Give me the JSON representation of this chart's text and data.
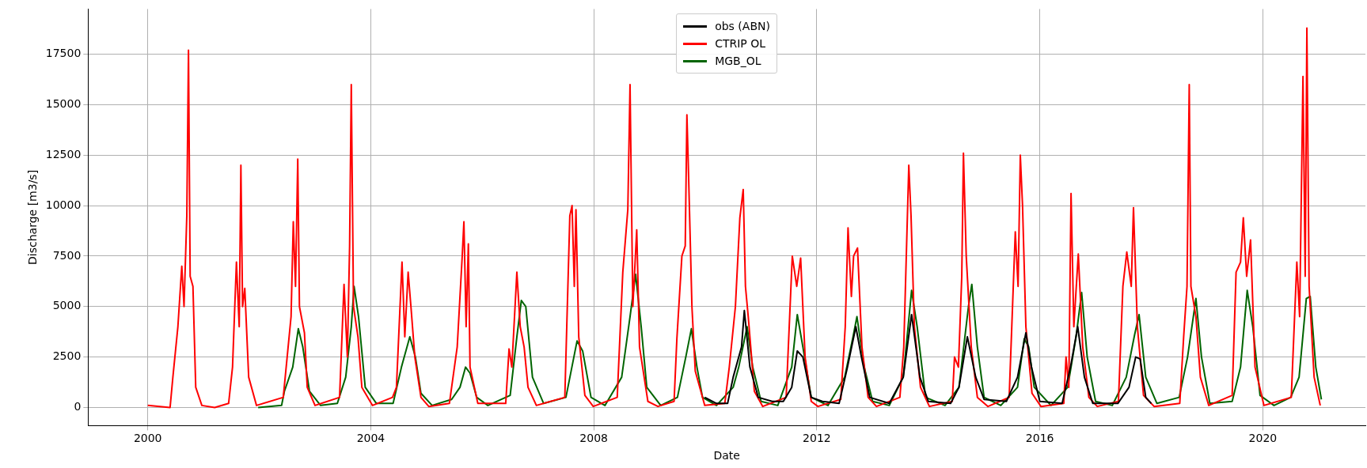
{
  "chart_data": {
    "type": "line",
    "xlabel": "Date",
    "ylabel": "Discharge [m3/s]",
    "xlim": [
      1998.93,
      2021.84
    ],
    "xticks": [
      2000,
      2004,
      2008,
      2012,
      2016,
      2020
    ],
    "ylim": [
      -900,
      19740
    ],
    "yticks": [
      0,
      2500,
      5000,
      7500,
      10000,
      12500,
      15000,
      17500
    ],
    "grid": true,
    "legend": "top",
    "marker": "none",
    "line_style": "solid",
    "series": [
      {
        "name": "obs (ABN)",
        "color": "#000000",
        "x": [
          2009.99,
          2010.2,
          2010.4,
          2010.5,
          2010.65,
          2010.7,
          2010.8,
          2010.95,
          2011.2,
          2011.4,
          2011.55,
          2011.65,
          2011.75,
          2011.9,
          2012.1,
          2012.4,
          2012.55,
          2012.7,
          2012.8,
          2012.95,
          2013.3,
          2013.55,
          2013.7,
          2013.85,
          2014.0,
          2014.4,
          2014.55,
          2014.7,
          2014.85,
          2015.0,
          2015.4,
          2015.6,
          2015.75,
          2015.85,
          2016.0,
          2016.4,
          2016.55,
          2016.68,
          2016.8,
          2016.95,
          2017.4,
          2017.6,
          2017.72,
          2017.8,
          2017.9,
          2018.0
        ],
        "values": [
          500,
          200,
          200,
          1500,
          3000,
          4800,
          2000,
          500,
          300,
          300,
          1000,
          2800,
          2500,
          500,
          300,
          200,
          2000,
          4000,
          2500,
          500,
          200,
          1500,
          4600,
          1500,
          300,
          200,
          1000,
          3500,
          1500,
          400,
          300,
          1500,
          3700,
          2000,
          300,
          200,
          2000,
          4000,
          1500,
          200,
          200,
          1000,
          2500,
          2400,
          500,
          200
        ]
      },
      {
        "name": "CTRIP OL",
        "color": "#ff0000",
        "x": [
          2000.0,
          2000.4,
          2000.45,
          2000.54,
          2000.61,
          2000.65,
          2000.7,
          2000.73,
          2000.76,
          2000.81,
          2000.86,
          2000.97,
          2001.2,
          2001.45,
          2001.52,
          2001.59,
          2001.64,
          2001.67,
          2001.7,
          2001.74,
          2001.81,
          2001.95,
          2002.43,
          2002.57,
          2002.61,
          2002.65,
          2002.69,
          2002.72,
          2002.81,
          2002.86,
          2003.0,
          2003.44,
          2003.52,
          2003.58,
          2003.62,
          2003.65,
          2003.69,
          2003.77,
          2003.84,
          2004.03,
          2004.39,
          2004.46,
          2004.56,
          2004.61,
          2004.67,
          2004.72,
          2004.79,
          2004.9,
          2005.04,
          2005.41,
          2005.55,
          2005.64,
          2005.67,
          2005.71,
          2005.75,
          2005.78,
          2005.92,
          2006.42,
          2006.48,
          2006.53,
          2006.62,
          2006.68,
          2006.75,
          2006.82,
          2006.97,
          2007.48,
          2007.57,
          2007.61,
          2007.65,
          2007.68,
          2007.73,
          2007.84,
          2007.99,
          2008.42,
          2008.52,
          2008.61,
          2008.65,
          2008.7,
          2008.77,
          2008.82,
          2008.97,
          2009.15,
          2009.44,
          2009.49,
          2009.58,
          2009.64,
          2009.67,
          2009.7,
          2009.76,
          2009.82,
          2009.99,
          2010.35,
          2010.43,
          2010.54,
          2010.62,
          2010.68,
          2010.72,
          2010.77,
          2010.88,
          2011.03,
          2011.45,
          2011.56,
          2011.64,
          2011.71,
          2011.79,
          2011.9,
          2012.02,
          2012.43,
          2012.51,
          2012.56,
          2012.62,
          2012.66,
          2012.73,
          2012.81,
          2012.92,
          2013.07,
          2013.49,
          2013.56,
          2013.65,
          2013.69,
          2013.75,
          2013.86,
          2014.02,
          2014.43,
          2014.47,
          2014.54,
          2014.6,
          2014.63,
          2014.68,
          2014.77,
          2014.88,
          2015.07,
          2015.45,
          2015.56,
          2015.61,
          2015.65,
          2015.69,
          2015.75,
          2015.86,
          2016.02,
          2016.43,
          2016.47,
          2016.52,
          2016.56,
          2016.61,
          2016.69,
          2016.77,
          2016.88,
          2017.03,
          2017.41,
          2017.49,
          2017.56,
          2017.64,
          2017.68,
          2017.75,
          2017.86,
          2018.05,
          2018.51,
          2018.58,
          2018.64,
          2018.68,
          2018.71,
          2018.8,
          2018.88,
          2019.03,
          2019.45,
          2019.52,
          2019.6,
          2019.65,
          2019.71,
          2019.78,
          2019.86,
          2020.02,
          2020.51,
          2020.61,
          2020.66,
          2020.72,
          2020.76,
          2020.79,
          2020.83,
          2020.92,
          2021.03
        ],
        "values": [
          100,
          0,
          1500,
          4000,
          7000,
          5000,
          9500,
          17700,
          6500,
          6000,
          1000,
          100,
          0,
          200,
          2000,
          7200,
          4000,
          12000,
          5000,
          5900,
          1500,
          100,
          500,
          4500,
          9200,
          6000,
          12300,
          5000,
          3700,
          1000,
          100,
          500,
          6100,
          2500,
          8000,
          16000,
          5000,
          3500,
          1000,
          100,
          500,
          1000,
          7200,
          3500,
          6700,
          5000,
          2500,
          500,
          50,
          200,
          3000,
          7500,
          9200,
          4000,
          8100,
          2000,
          200,
          200,
          2900,
          2000,
          6700,
          4000,
          3000,
          1000,
          100,
          500,
          9500,
          10000,
          6000,
          9800,
          3500,
          600,
          50,
          500,
          6700,
          9800,
          16000,
          5000,
          8800,
          3000,
          300,
          50,
          300,
          3400,
          7500,
          8000,
          14500,
          11500,
          5000,
          1800,
          100,
          200,
          2000,
          5000,
          9400,
          10800,
          6000,
          4500,
          800,
          50,
          500,
          7500,
          6000,
          7400,
          2500,
          300,
          50,
          400,
          4000,
          8900,
          5500,
          7500,
          7900,
          3000,
          500,
          50,
          500,
          3000,
          12000,
          9500,
          4000,
          1000,
          50,
          300,
          2500,
          2000,
          6500,
          12600,
          7500,
          3000,
          500,
          50,
          500,
          8700,
          6000,
          12500,
          10000,
          4000,
          700,
          50,
          200,
          2500,
          1000,
          10600,
          4000,
          7600,
          3000,
          500,
          50,
          300,
          6000,
          7700,
          6000,
          9900,
          4000,
          600,
          50,
          200,
          3500,
          6000,
          16000,
          6000,
          4500,
          1500,
          100,
          600,
          6700,
          7200,
          9400,
          6500,
          8300,
          2000,
          100,
          500,
          7200,
          4500,
          16400,
          6500,
          18800,
          6000,
          1500,
          100
        ]
      },
      {
        "name": "MGB_OL",
        "color": "#006400",
        "x": [
          2001.98,
          2002.4,
          2002.45,
          2002.6,
          2002.7,
          2002.78,
          2002.9,
          2003.1,
          2003.4,
          2003.55,
          2003.65,
          2003.7,
          2003.78,
          2003.9,
          2004.1,
          2004.4,
          2004.55,
          2004.7,
          2004.8,
          2004.9,
          2005.1,
          2005.45,
          2005.6,
          2005.7,
          2005.78,
          2005.9,
          2006.1,
          2006.5,
          2006.62,
          2006.7,
          2006.78,
          2006.9,
          2007.1,
          2007.5,
          2007.7,
          2007.8,
          2007.95,
          2008.2,
          2008.5,
          2008.65,
          2008.75,
          2008.85,
          2008.95,
          2009.2,
          2009.5,
          2009.65,
          2009.75,
          2009.85,
          2009.95,
          2010.2,
          2010.5,
          2010.6,
          2010.75,
          2010.85,
          2011.0,
          2011.3,
          2011.55,
          2011.65,
          2011.75,
          2011.9,
          2012.2,
          2012.5,
          2012.65,
          2012.72,
          2012.85,
          2013.0,
          2013.3,
          2013.55,
          2013.7,
          2013.8,
          2013.95,
          2014.3,
          2014.55,
          2014.72,
          2014.78,
          2014.88,
          2015.0,
          2015.3,
          2015.6,
          2015.72,
          2015.8,
          2015.9,
          2016.2,
          2016.5,
          2016.65,
          2016.75,
          2016.85,
          2017.0,
          2017.3,
          2017.55,
          2017.7,
          2017.78,
          2017.9,
          2018.1,
          2018.5,
          2018.65,
          2018.8,
          2018.9,
          2019.05,
          2019.45,
          2019.6,
          2019.72,
          2019.82,
          2019.95,
          2020.2,
          2020.5,
          2020.65,
          2020.78,
          2020.85,
          2020.95,
          2021.05
        ],
        "values": [
          0,
          100,
          800,
          2000,
          3900,
          3000,
          800,
          100,
          200,
          1500,
          4000,
          6000,
          4500,
          1000,
          200,
          200,
          2000,
          3500,
          2500,
          700,
          100,
          400,
          1000,
          2000,
          1700,
          500,
          100,
          600,
          3500,
          5300,
          5000,
          1500,
          200,
          500,
          3300,
          2800,
          500,
          100,
          1500,
          4500,
          6600,
          4000,
          1000,
          100,
          500,
          2500,
          3900,
          2000,
          500,
          100,
          1000,
          2000,
          4000,
          2000,
          300,
          100,
          2000,
          4600,
          3000,
          500,
          100,
          1500,
          3500,
          4500,
          2000,
          300,
          100,
          1500,
          5800,
          4000,
          500,
          100,
          1000,
          5000,
          6100,
          3000,
          500,
          100,
          1000,
          3400,
          3000,
          1000,
          100,
          1000,
          3500,
          5700,
          2500,
          300,
          100,
          1500,
          3600,
          4600,
          1500,
          200,
          500,
          2500,
          5400,
          2500,
          200,
          300,
          2000,
          5800,
          4000,
          600,
          100,
          500,
          1500,
          5400,
          5500,
          2000,
          400
        ]
      }
    ]
  }
}
